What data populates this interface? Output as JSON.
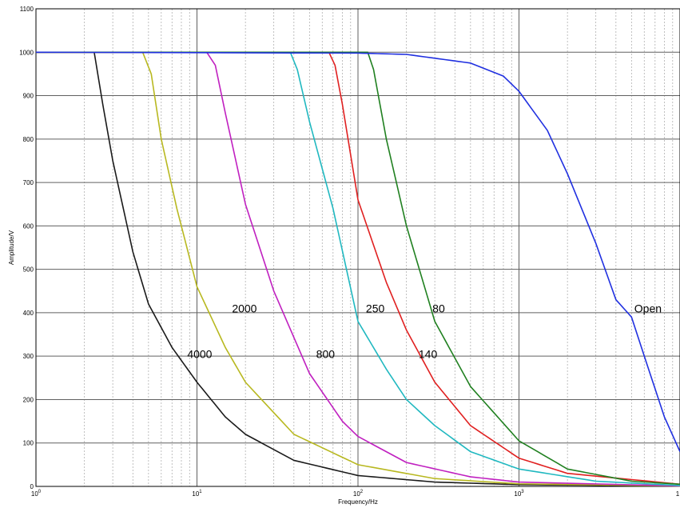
{
  "chart_data": {
    "type": "line",
    "xscale": "log",
    "xlim": [
      1,
      10000
    ],
    "ylim": [
      0,
      1100
    ],
    "grid": true,
    "xlabel": "Frequency/Hz",
    "ylabel": "Amplitude/V",
    "x_ticks": [
      {
        "base": "10",
        "exp": "0"
      },
      {
        "base": "10",
        "exp": "1"
      },
      {
        "base": "10",
        "exp": "2"
      },
      {
        "base": "10",
        "exp": "3"
      },
      {
        "base": "1",
        "exp": ""
      }
    ],
    "y_ticks": [
      "0",
      "100",
      "200",
      "300",
      "400",
      "500",
      "600",
      "700",
      "800",
      "900",
      "1000",
      "1100"
    ],
    "series": [
      {
        "name": "4000",
        "color": "#1a1a1a",
        "label_at": [
          8.7,
          305
        ],
        "points": [
          [
            1,
            1000
          ],
          [
            2.3,
            1000
          ],
          [
            2.6,
            880
          ],
          [
            3.0,
            750
          ],
          [
            4.0,
            540
          ],
          [
            5.0,
            420
          ],
          [
            7.0,
            320
          ],
          [
            10.0,
            240
          ],
          [
            15.0,
            160
          ],
          [
            20.0,
            120
          ],
          [
            40.0,
            60
          ],
          [
            100.0,
            25
          ],
          [
            300.0,
            10
          ],
          [
            1000.0,
            4
          ],
          [
            10000,
            1
          ]
        ]
      },
      {
        "name": "2000",
        "color": "#b8b820",
        "label_at": [
          16.5,
          410
        ],
        "points": [
          [
            1,
            1000
          ],
          [
            4.6,
            1000
          ],
          [
            5.2,
            950
          ],
          [
            6.0,
            800
          ],
          [
            7.5,
            640
          ],
          [
            10.0,
            460
          ],
          [
            15.0,
            320
          ],
          [
            20.0,
            240
          ],
          [
            40.0,
            120
          ],
          [
            100.0,
            50
          ],
          [
            300.0,
            18
          ],
          [
            1000.0,
            6
          ],
          [
            10000,
            1
          ]
        ]
      },
      {
        "name": "800",
        "color": "#c020c0",
        "label_at": [
          55,
          305
        ],
        "points": [
          [
            1,
            1000
          ],
          [
            11.5,
            1000
          ],
          [
            13.0,
            970
          ],
          [
            15.0,
            860
          ],
          [
            20.0,
            650
          ],
          [
            30.0,
            450
          ],
          [
            50.0,
            260
          ],
          [
            80.0,
            150
          ],
          [
            100.0,
            115
          ],
          [
            200.0,
            55
          ],
          [
            500.0,
            22
          ],
          [
            1000.0,
            10
          ],
          [
            10000,
            1
          ]
        ]
      },
      {
        "name": "250",
        "color": "#20b8c0",
        "label_at": [
          112,
          410
        ],
        "points": [
          [
            1,
            1000
          ],
          [
            38.0,
            1000
          ],
          [
            42.0,
            960
          ],
          [
            50.0,
            840
          ],
          [
            70.0,
            640
          ],
          [
            100.0,
            380
          ],
          [
            150.0,
            270
          ],
          [
            200.0,
            200
          ],
          [
            300.0,
            140
          ],
          [
            500.0,
            80
          ],
          [
            1000.0,
            40
          ],
          [
            3000.0,
            12
          ],
          [
            10000,
            2
          ]
        ]
      },
      {
        "name": "140",
        "color": "#e02020",
        "label_at": [
          238,
          305
        ],
        "points": [
          [
            1,
            1000
          ],
          [
            66.0,
            1000
          ],
          [
            72.0,
            970
          ],
          [
            80.0,
            880
          ],
          [
            100.0,
            660
          ],
          [
            150.0,
            470
          ],
          [
            200.0,
            360
          ],
          [
            300.0,
            240
          ],
          [
            500.0,
            140
          ],
          [
            1000.0,
            65
          ],
          [
            2000.0,
            30
          ],
          [
            10000,
            5
          ]
        ]
      },
      {
        "name": "80",
        "color": "#208020",
        "label_at": [
          290,
          410
        ],
        "points": [
          [
            1,
            1000
          ],
          [
            115.0,
            1000
          ],
          [
            125.0,
            960
          ],
          [
            150.0,
            800
          ],
          [
            200.0,
            600
          ],
          [
            300.0,
            380
          ],
          [
            500.0,
            230
          ],
          [
            1000.0,
            105
          ],
          [
            2000.0,
            40
          ],
          [
            5000.0,
            12
          ],
          [
            10000,
            5
          ]
        ]
      },
      {
        "name": "Open",
        "color": "#2030e0",
        "label_at": [
          5200,
          410
        ],
        "points": [
          [
            1,
            1000
          ],
          [
            100,
            998
          ],
          [
            200,
            995
          ],
          [
            500,
            975
          ],
          [
            800,
            945
          ],
          [
            1000,
            910
          ],
          [
            1500,
            820
          ],
          [
            2000,
            720
          ],
          [
            3000,
            560
          ],
          [
            4000,
            430
          ],
          [
            5000,
            390
          ],
          [
            6000,
            300
          ],
          [
            8000,
            160
          ],
          [
            10000,
            80
          ]
        ]
      }
    ]
  }
}
